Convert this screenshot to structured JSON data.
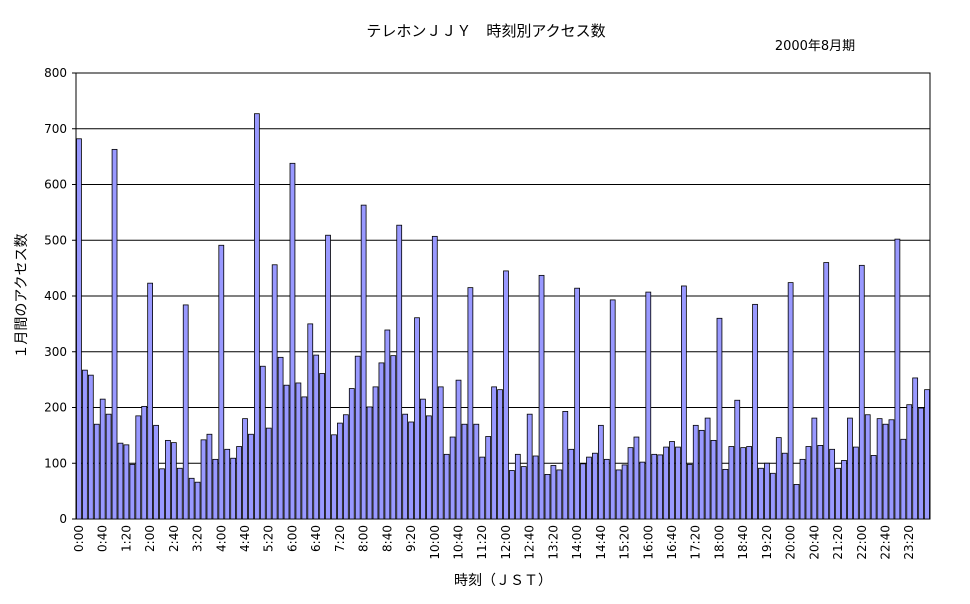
{
  "chart_data": {
    "type": "bar",
    "title": "テレホンＪＪＹ　時刻別アクセス数",
    "subtitle": "2000年8月期",
    "xlabel": "時刻（ＪＳＴ）",
    "ylabel": "１月間のアクセス数",
    "ylim": [
      0,
      800
    ],
    "yticks": [
      "0",
      "100",
      "200",
      "300",
      "400",
      "500",
      "600",
      "700",
      "800"
    ],
    "grid": "horizontal",
    "bar_color": "#9999ff",
    "x_tick_labels": [
      "0:00",
      "0:40",
      "1:20",
      "2:00",
      "2:40",
      "3:20",
      "4:00",
      "4:40",
      "5:20",
      "6:00",
      "6:40",
      "7:20",
      "8:00",
      "8:40",
      "9:20",
      "10:00",
      "10:40",
      "11:20",
      "12:00",
      "12:40",
      "13:20",
      "14:00",
      "14:40",
      "15:20",
      "16:00",
      "16:40",
      "17:20",
      "18:00",
      "18:40",
      "19:20",
      "20:00",
      "20:40",
      "21:20",
      "22:00",
      "22:40",
      "23:20"
    ],
    "values": [
      682,
      267,
      258,
      170,
      215,
      188,
      663,
      136,
      133,
      98,
      185,
      202,
      423,
      168,
      90,
      141,
      137,
      91,
      384,
      73,
      66,
      142,
      152,
      107,
      491,
      125,
      109,
      130,
      180,
      152,
      727,
      274,
      163,
      456,
      290,
      240,
      638,
      244,
      219,
      350,
      294,
      261,
      509,
      151,
      172,
      187,
      234,
      292,
      563,
      201,
      237,
      280,
      339,
      293,
      527,
      188,
      174,
      361,
      215,
      185,
      507,
      237,
      116,
      147,
      249,
      170,
      415,
      170,
      111,
      148,
      237,
      232,
      445,
      87,
      116,
      94,
      188,
      113,
      437,
      80,
      96,
      88,
      193,
      125,
      414,
      99,
      111,
      118,
      168,
      107,
      393,
      88,
      97,
      128,
      147,
      102,
      407,
      116,
      115,
      129,
      139,
      129,
      418,
      98,
      168,
      159,
      181,
      141,
      360,
      89,
      130,
      213,
      128,
      130,
      385,
      91,
      100,
      82,
      146,
      118,
      424,
      62,
      107,
      130,
      181,
      132,
      460,
      125,
      91,
      105,
      181,
      129,
      455,
      187,
      114,
      180,
      170,
      178,
      502,
      143,
      205,
      253,
      199,
      232
    ]
  }
}
